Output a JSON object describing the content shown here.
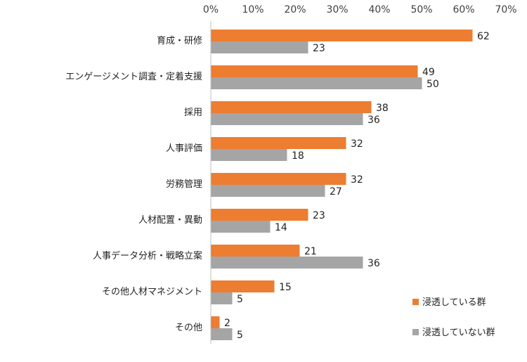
{
  "chart_data": {
    "type": "bar",
    "orientation": "horizontal",
    "categories": [
      "育成・研修",
      "エンゲージメント調査・定着支援",
      "採用",
      "人事評価",
      "労務管理",
      "人材配置・異動",
      "人事データ分析・戦略立案",
      "その他人材マネジメント",
      "その他"
    ],
    "series": [
      {
        "name": "浸透している群",
        "color": "#ED7D31",
        "values": [
          62,
          49,
          38,
          32,
          32,
          23,
          21,
          15,
          2
        ]
      },
      {
        "name": "浸透していない群",
        "color": "#A5A5A5",
        "values": [
          23,
          50,
          36,
          18,
          27,
          14,
          36,
          5,
          5
        ]
      }
    ],
    "xlim": [
      0,
      70
    ],
    "x_ticks": [
      "0%",
      "10%",
      "20%",
      "30%",
      "40%",
      "50%",
      "60%",
      "70%"
    ],
    "x_axis_position": "top",
    "legend_position": "bottom-right",
    "title": "",
    "xlabel": "",
    "ylabel": ""
  }
}
